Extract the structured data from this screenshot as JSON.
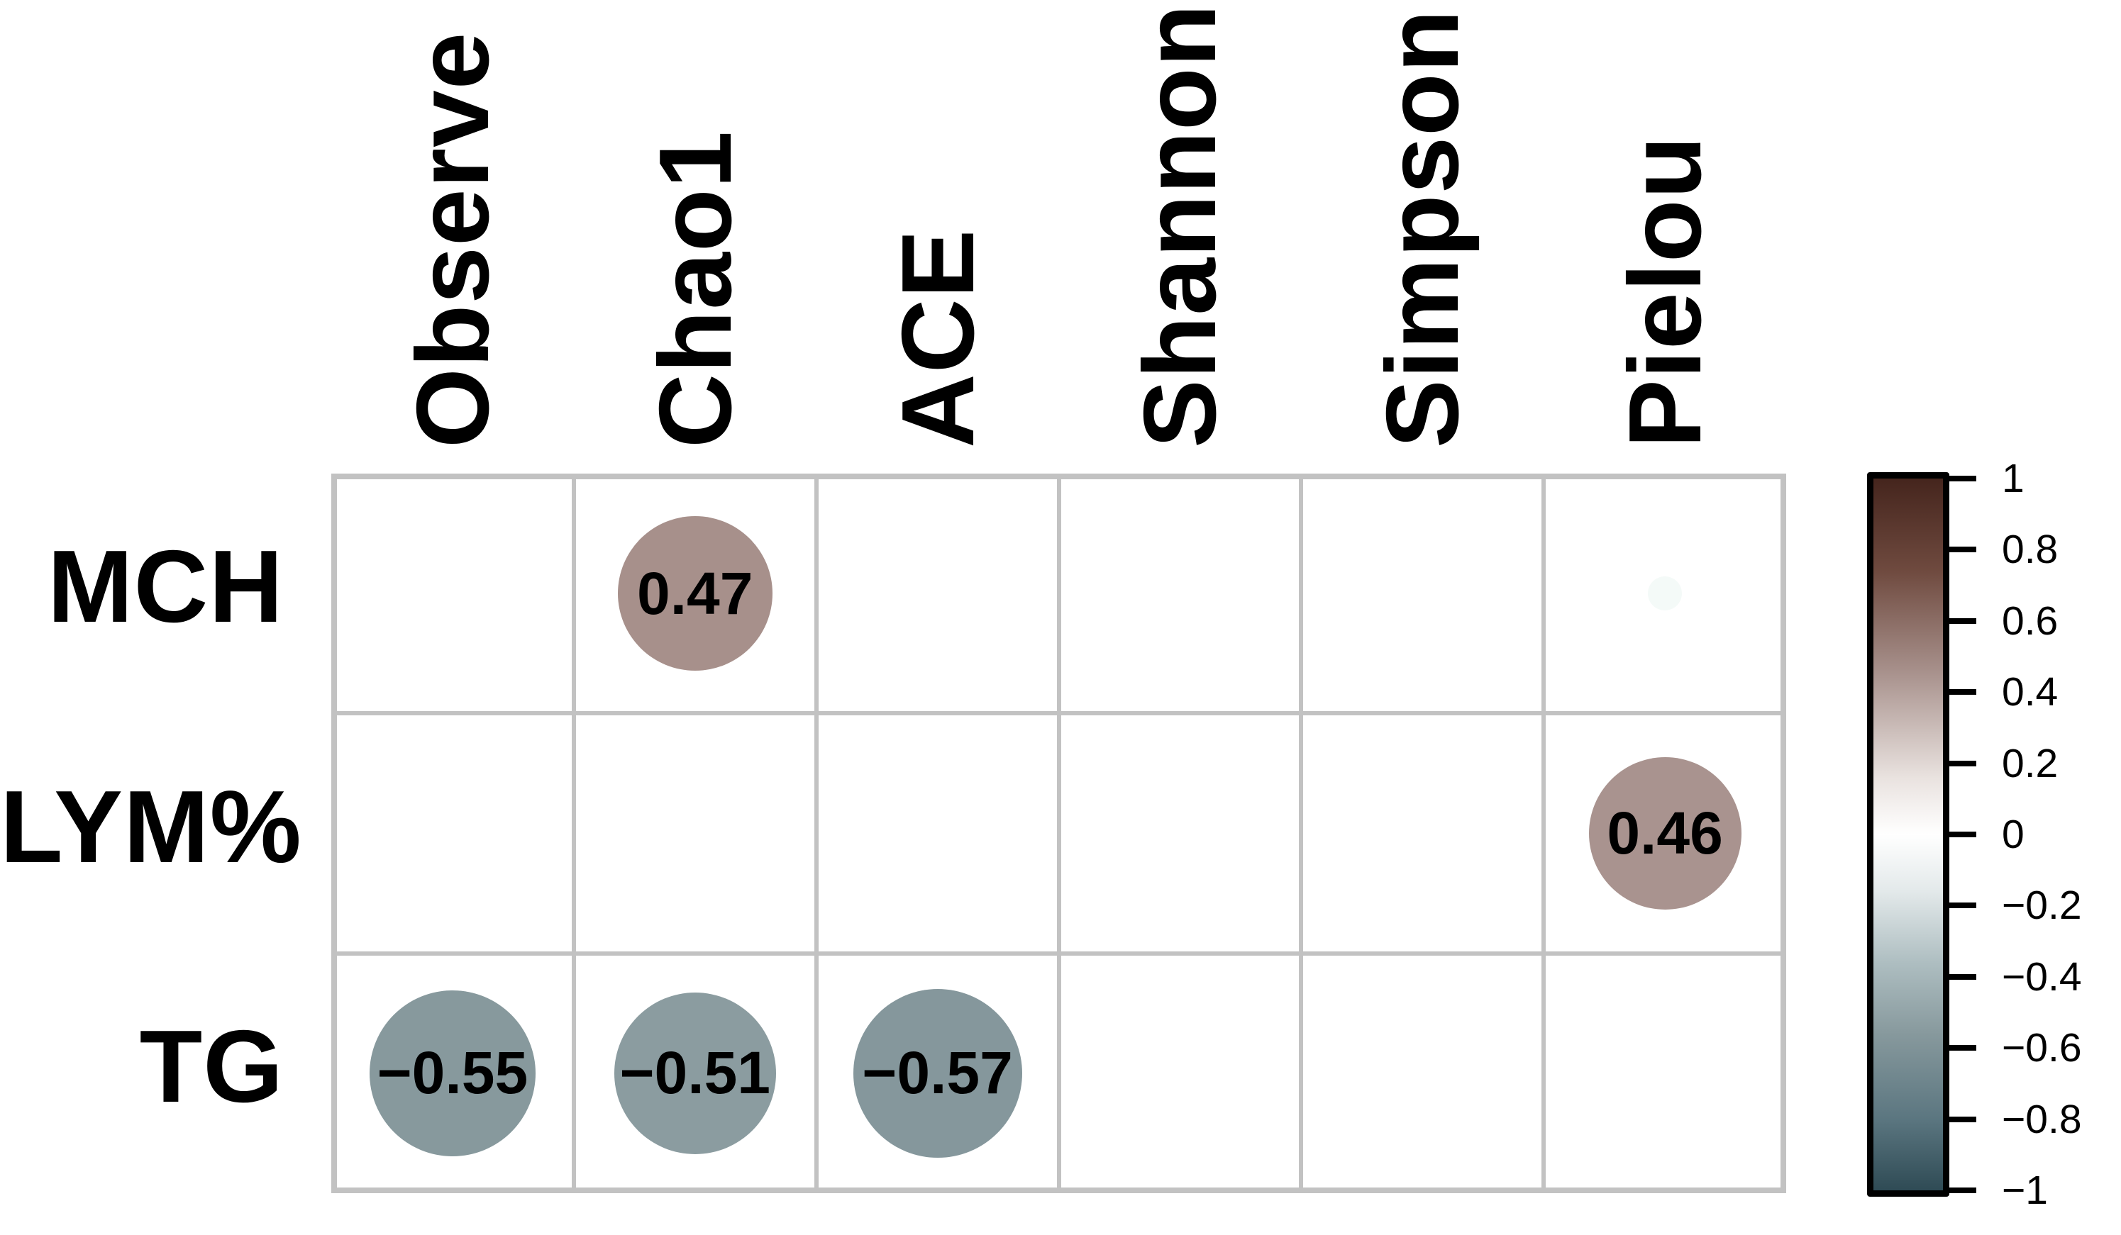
{
  "figure": {
    "background": "#ffffff",
    "description": "Correlation bubble matrix between blood/biochemical parameters and alpha-diversity indices with diverging colorbar"
  },
  "chart_data": {
    "type": "heatmap",
    "subtype": "correlation-bubble-matrix",
    "rows": [
      "MCH",
      "LYM%",
      "TG"
    ],
    "columns": [
      "Observe",
      "Chao1",
      "ACE",
      "Shannon",
      "Simpson",
      "Pielou"
    ],
    "cells": [
      {
        "row": "MCH",
        "col": "Chao1",
        "row_index": 0,
        "col_index": 1,
        "value": 0.47,
        "label": "0.47",
        "color": "#a7908b",
        "diameter": 218
      },
      {
        "row": "MCH",
        "col": "Pielou",
        "row_index": 0,
        "col_index": 5,
        "value": null,
        "label": "",
        "color": "#f4faf8",
        "diameter": 48,
        "note": "very faint unlabeled near-zero marker"
      },
      {
        "row": "LYM%",
        "col": "Pielou",
        "row_index": 1,
        "col_index": 5,
        "value": 0.46,
        "label": "0.46",
        "color": "#a9938f",
        "diameter": 215
      },
      {
        "row": "TG",
        "col": "Observe",
        "row_index": 2,
        "col_index": 0,
        "value": -0.55,
        "label": "−0.55",
        "color": "#87999d",
        "diameter": 234
      },
      {
        "row": "TG",
        "col": "Chao1",
        "row_index": 2,
        "col_index": 1,
        "value": -0.51,
        "label": "−0.51",
        "color": "#8b9ca0",
        "diameter": 228
      },
      {
        "row": "TG",
        "col": "ACE",
        "row_index": 2,
        "col_index": 2,
        "value": -0.57,
        "label": "−0.57",
        "color": "#85979c",
        "diameter": 238
      }
    ],
    "empty_cells_note": "all other row/column combinations show no circle",
    "grid": {
      "n_rows": 3,
      "n_cols": 6,
      "grid_on": true,
      "line_color": "#c2c2c2",
      "cell_fill": "#ffffff"
    },
    "colorbar": {
      "position": "right",
      "range": [
        -1,
        1
      ],
      "ticks": [
        "1",
        "0.8",
        "0.6",
        "0.4",
        "0.2",
        "0",
        "−0.2",
        "−0.4",
        "−0.6",
        "−0.8",
        "−1"
      ],
      "top_color": "#45251d",
      "positive_mid_color": "#a7908b",
      "mid_color": "#ffffff",
      "negative_mid_color": "#87999d",
      "bottom_color": "#2f4b55",
      "frame_color": "#000000"
    },
    "text_colors": {
      "labels": "#000000",
      "values": "#000000"
    }
  }
}
